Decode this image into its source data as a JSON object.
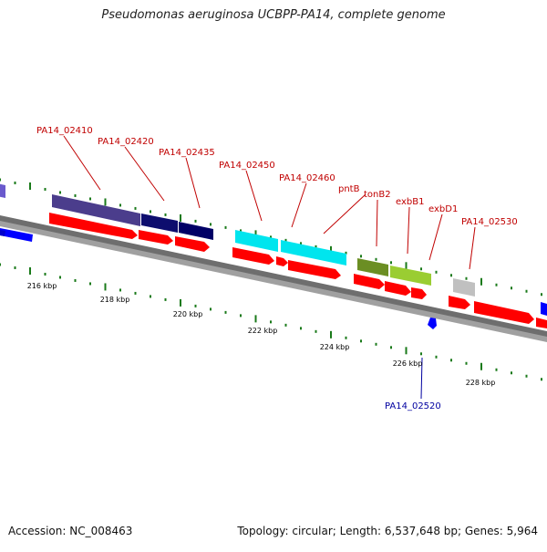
{
  "header": {
    "title": "Pseudomonas aeruginosa UCBPP-PA14, complete genome"
  },
  "footer": {
    "accession": "Accession: NC_008463",
    "topology": "Topology: circular; Length: 6,537,648 bp; Genes: 5,964"
  },
  "colors": {
    "backbone": "#7f7f7f",
    "forward_gene": "#ff0000",
    "reverse_gene": "#0000ff",
    "tick": "#1a7a1a",
    "label_forward": "#c00000",
    "label_reverse": "#0000a0"
  },
  "scale_labels": [
    "216 kbp",
    "218 kbp",
    "220 kbp",
    "222 kbp",
    "224 kbp",
    "226 kbp",
    "228 kbp"
  ],
  "gene_labels": [
    {
      "text": "PA14_02410",
      "strand": "forward"
    },
    {
      "text": "PA14_02420",
      "strand": "forward"
    },
    {
      "text": "PA14_02435",
      "strand": "forward"
    },
    {
      "text": "PA14_02450",
      "strand": "forward"
    },
    {
      "text": "PA14_02460",
      "strand": "forward"
    },
    {
      "text": "pntB",
      "strand": "forward"
    },
    {
      "text": "tonB2",
      "strand": "forward"
    },
    {
      "text": "exbB1",
      "strand": "forward"
    },
    {
      "text": "exbD1",
      "strand": "forward"
    },
    {
      "text": "PA14_02530",
      "strand": "forward"
    },
    {
      "text": "PA14_02520",
      "strand": "reverse"
    }
  ]
}
